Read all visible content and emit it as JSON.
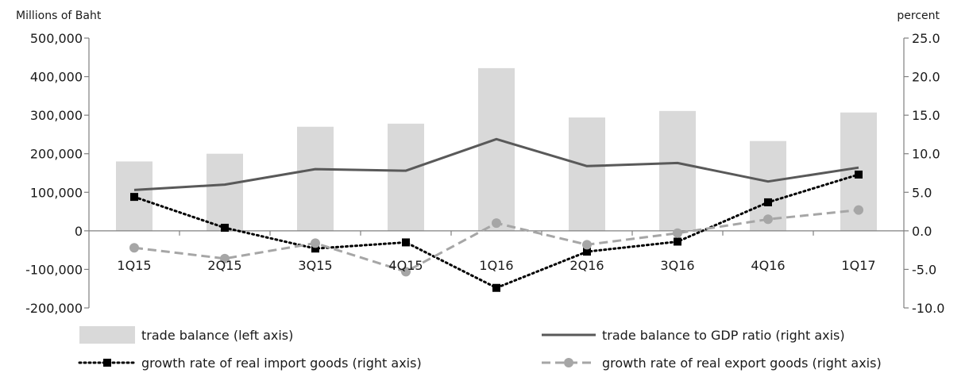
{
  "chart_data": {
    "type": "bar",
    "categories": [
      "1Q15",
      "2Q15",
      "3Q15",
      "4Q15",
      "1Q16",
      "2Q16",
      "3Q16",
      "4Q16",
      "1Q17"
    ],
    "left_axis": {
      "label": "Millions of Baht",
      "ylim": [
        -200000,
        500000
      ],
      "ticks": [
        500000,
        400000,
        300000,
        200000,
        100000,
        0,
        -100000,
        -200000
      ],
      "tick_labels": [
        "500,000",
        "400,000",
        "300,000",
        "200,000",
        "100,000",
        "0",
        "-100,000",
        "-200,000"
      ]
    },
    "right_axis": {
      "label": "percent",
      "ylim": [
        -10,
        25
      ],
      "ticks": [
        25,
        20,
        15,
        10,
        5,
        0,
        -5,
        -10
      ],
      "tick_labels": [
        "25.0",
        "20.0",
        "15.0",
        "10.0",
        "5.0",
        "0.0",
        "-5.0",
        "-10.0"
      ]
    },
    "series": [
      {
        "name": "trade balance (left axis)",
        "type": "bar",
        "axis": "left",
        "color": "#d9d9d9",
        "values": [
          180000,
          200000,
          270000,
          278000,
          422000,
          294000,
          311000,
          233000,
          307000
        ]
      },
      {
        "name": "trade balance to GDP ratio (right axis)",
        "type": "line",
        "axis": "right",
        "color": "#595959",
        "style": "solid",
        "values": [
          5.3,
          6.0,
          8.0,
          7.8,
          11.9,
          8.4,
          8.8,
          6.4,
          8.2
        ]
      },
      {
        "name": "growth rate of real import goods (right axis)",
        "type": "line",
        "axis": "right",
        "color": "#000000",
        "style": "dotted",
        "marker": "square",
        "values": [
          4.4,
          0.4,
          -2.3,
          -1.5,
          -7.4,
          -2.7,
          -1.4,
          3.7,
          7.3
        ]
      },
      {
        "name": "growth rate of real export goods (right axis)",
        "type": "line",
        "axis": "right",
        "color": "#a6a6a6",
        "style": "dashed",
        "marker": "circle",
        "values": [
          -2.2,
          -3.6,
          -1.6,
          -5.3,
          1.0,
          -1.8,
          -0.3,
          1.5,
          2.7
        ]
      }
    ],
    "grid": false,
    "legend_position": "bottom"
  }
}
